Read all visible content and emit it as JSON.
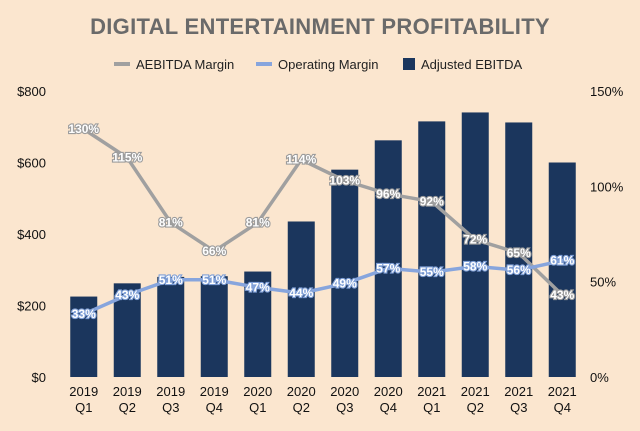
{
  "chart_data": {
    "type": "bar+line",
    "title": "DIGITAL ENTERTAINMENT PROFITABILITY",
    "categories": [
      [
        "2019",
        "Q1"
      ],
      [
        "2019",
        "Q2"
      ],
      [
        "2019",
        "Q3"
      ],
      [
        "2019",
        "Q4"
      ],
      [
        "2020",
        "Q1"
      ],
      [
        "2020",
        "Q2"
      ],
      [
        "2020",
        "Q3"
      ],
      [
        "2020",
        "Q4"
      ],
      [
        "2021",
        "Q1"
      ],
      [
        "2021",
        "Q2"
      ],
      [
        "2021",
        "Q3"
      ],
      [
        "2021",
        "Q4"
      ]
    ],
    "series": [
      {
        "name": "AEBITDA Margin",
        "type": "line",
        "axis": "right",
        "values": [
          130,
          115,
          81,
          66,
          81,
          114,
          103,
          96,
          92,
          72,
          65,
          43
        ],
        "labels": [
          "130%",
          "115%",
          "81%",
          "66%",
          "81%",
          "114%",
          "103%",
          "96%",
          "92%",
          "72%",
          "65%",
          "43%"
        ]
      },
      {
        "name": "Operating Margin",
        "type": "line",
        "axis": "right",
        "values": [
          33,
          43,
          51,
          51,
          47,
          44,
          49,
          57,
          55,
          58,
          56,
          61
        ],
        "labels": [
          "33%",
          "43%",
          "51%",
          "51%",
          "47%",
          "44%",
          "49%",
          "57%",
          "55%",
          "58%",
          "56%",
          "61%"
        ]
      },
      {
        "name": "Adjusted EBITDA",
        "type": "bar",
        "axis": "left",
        "values": [
          225,
          262,
          280,
          282,
          295,
          435,
          580,
          662,
          715,
          740,
          712,
          600
        ]
      }
    ],
    "left_axis": {
      "ticks": [
        0,
        200,
        400,
        600,
        800
      ],
      "tick_labels": [
        "$0",
        "$200",
        "$400",
        "$600",
        "$800"
      ],
      "range": [
        0,
        800
      ]
    },
    "right_axis": {
      "ticks": [
        0,
        50,
        100,
        150
      ],
      "tick_labels": [
        "0%",
        "50%",
        "100%",
        "150%"
      ],
      "range": [
        0,
        150
      ]
    },
    "colors": {
      "aebitda_margin": "#a0a0a0",
      "operating_margin": "#87a5dd",
      "adjusted_ebitda": "#1b365d",
      "background": "#fbe6cf",
      "title": "#6a6a6a"
    },
    "legend_position": "top-center"
  }
}
